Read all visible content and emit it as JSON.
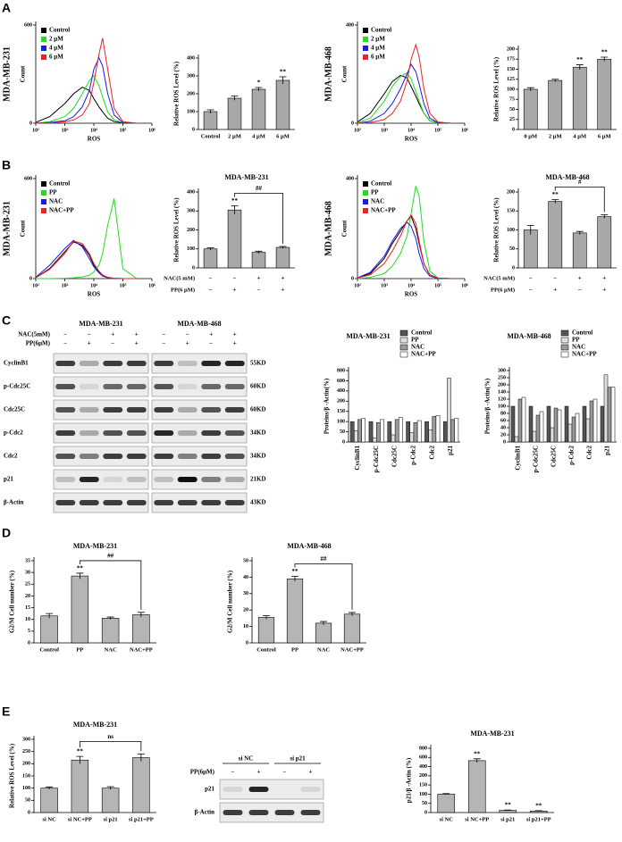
{
  "panels": [
    "A",
    "B",
    "C",
    "D",
    "E"
  ],
  "chart_data": [
    {
      "type": "line",
      "side_label": "MDA-MB-231",
      "xlabel": "ROS",
      "ylabel": "Count",
      "xscale": "log",
      "xlim": [
        100,
        1000000
      ],
      "xticks": [
        {
          "value": 100,
          "label": "10²"
        },
        {
          "value": 1000,
          "label": "10³"
        },
        {
          "value": 10000,
          "label": "10⁴"
        },
        {
          "value": 100000,
          "label": "10⁵"
        },
        {
          "value": 1000000,
          "label": "10⁶"
        }
      ],
      "ylim": [
        0,
        600
      ],
      "yticks": [
        0,
        600
      ],
      "x": [
        100,
        300,
        1000,
        2000,
        4000,
        7000,
        10000,
        15000,
        20000,
        30000,
        50000,
        100000,
        300000
      ],
      "series": [
        {
          "name": "Control",
          "color": "#000000",
          "values": [
            5,
            40,
            120,
            180,
            220,
            200,
            150,
            100,
            70,
            30,
            10,
            2,
            0
          ]
        },
        {
          "name": "2 μM",
          "color": "#22dd22",
          "values": [
            0,
            10,
            40,
            90,
            180,
            260,
            290,
            230,
            160,
            70,
            20,
            3,
            0
          ]
        },
        {
          "name": "4 μM",
          "color": "#1a1aee",
          "values": [
            0,
            5,
            15,
            40,
            100,
            200,
            330,
            400,
            350,
            180,
            50,
            5,
            0
          ]
        },
        {
          "name": "6 μM",
          "color": "#ee2222",
          "values": [
            0,
            2,
            8,
            20,
            50,
            120,
            250,
            420,
            520,
            330,
            90,
            10,
            0
          ]
        }
      ]
    },
    {
      "type": "bar",
      "ylabel": "Relative ROS Level (%)",
      "categories": [
        "Control",
        "2 μM",
        "4 μM",
        "6 μM"
      ],
      "values": [
        100,
        175,
        225,
        275
      ],
      "errors": [
        10,
        12,
        10,
        20
      ],
      "significance": [
        null,
        null,
        "*",
        "**"
      ],
      "color": "#a8a8a8",
      "ylim": [
        0,
        400
      ],
      "yticks": [
        0,
        100,
        200,
        300,
        400
      ]
    },
    {
      "type": "line",
      "side_label": "MDA-MB-468",
      "xlabel": "ROS",
      "ylabel": "Count",
      "xscale": "log",
      "xlim": [
        100,
        1000000
      ],
      "xticks": [
        {
          "value": 100,
          "label": "10²"
        },
        {
          "value": 1000,
          "label": "10³"
        },
        {
          "value": 10000,
          "label": "10⁴"
        },
        {
          "value": 100000,
          "label": "10⁵"
        },
        {
          "value": 1000000,
          "label": "10⁶"
        }
      ],
      "ylim": [
        0,
        400
      ],
      "yticks": [
        0,
        400
      ],
      "x": [
        100,
        300,
        1000,
        2000,
        4000,
        7000,
        10000,
        15000,
        20000,
        30000,
        50000,
        100000,
        300000
      ],
      "series": [
        {
          "name": "Control",
          "color": "#000000",
          "values": [
            5,
            40,
            120,
            170,
            195,
            185,
            150,
            110,
            80,
            40,
            10,
            2,
            0
          ]
        },
        {
          "name": "2 μM",
          "color": "#22dd22",
          "values": [
            2,
            20,
            90,
            150,
            190,
            205,
            180,
            130,
            90,
            40,
            10,
            2,
            0
          ]
        },
        {
          "name": "4 μM",
          "color": "#1a1aee",
          "values": [
            0,
            8,
            40,
            80,
            140,
            200,
            240,
            210,
            160,
            80,
            20,
            3,
            0
          ]
        },
        {
          "name": "6 μM",
          "color": "#ee2222",
          "values": [
            0,
            3,
            15,
            40,
            90,
            170,
            260,
            320,
            270,
            140,
            40,
            5,
            0
          ]
        }
      ]
    },
    {
      "type": "bar",
      "ylabel": "Relative ROS Level (%)",
      "categories": [
        "0 μM",
        "2 μM",
        "4 μM",
        "6 μM"
      ],
      "values": [
        100,
        122,
        155,
        175
      ],
      "errors": [
        4,
        3,
        6,
        5
      ],
      "significance": [
        null,
        null,
        "**",
        "**"
      ],
      "color": "#a8a8a8",
      "ylim": [
        0,
        200
      ],
      "yticks": [
        0,
        25,
        50,
        75,
        100,
        125,
        150,
        175,
        200
      ]
    },
    {
      "type": "line",
      "side_label": "MDA-MB-231",
      "xlabel": "ROS",
      "ylabel": "Count",
      "xscale": "log",
      "xlim": [
        100,
        1000000
      ],
      "xticks": [
        {
          "value": 100,
          "label": "10²"
        },
        {
          "value": 1000,
          "label": "10³"
        },
        {
          "value": 10000,
          "label": "10⁴"
        },
        {
          "value": 100000,
          "label": "10⁵"
        },
        {
          "value": 1000000,
          "label": "10⁶"
        }
      ],
      "ylim": [
        0,
        600
      ],
      "yticks": [
        0,
        600
      ],
      "x": [
        100,
        300,
        1000,
        2000,
        4000,
        7000,
        10000,
        15000,
        20000,
        30000,
        50000,
        100000,
        300000
      ],
      "series": [
        {
          "name": "Control",
          "color": "#000000",
          "values": [
            5,
            60,
            160,
            220,
            200,
            140,
            80,
            40,
            20,
            6,
            1,
            0,
            0
          ]
        },
        {
          "name": "PP",
          "color": "#22dd22",
          "values": [
            0,
            0,
            2,
            5,
            10,
            20,
            40,
            80,
            150,
            320,
            480,
            60,
            0
          ]
        },
        {
          "name": "NAC",
          "color": "#1a1aee",
          "values": [
            8,
            80,
            180,
            230,
            190,
            120,
            70,
            35,
            15,
            5,
            1,
            0,
            0
          ]
        },
        {
          "name": "NAC+PP",
          "color": "#ee2222",
          "values": [
            5,
            55,
            150,
            225,
            210,
            150,
            90,
            45,
            22,
            8,
            2,
            0,
            0
          ]
        }
      ]
    },
    {
      "type": "bar",
      "title": "MDA-MB-231",
      "ylabel": "Relative ROS Level (%)",
      "values": [
        100,
        305,
        82,
        108
      ],
      "errors": [
        6,
        22,
        6,
        5
      ],
      "significance": [
        null,
        "**",
        null,
        null
      ],
      "bracket": "##",
      "conditions": [
        {
          "name": "NAC(5 mM)",
          "signs": [
            "−",
            "−",
            "+",
            "+"
          ]
        },
        {
          "name": "PP(6 μM)",
          "signs": [
            "−",
            "+",
            "−",
            "+"
          ]
        }
      ],
      "color": "#a8a8a8",
      "ylim": [
        0,
        400
      ],
      "yticks": [
        0,
        100,
        200,
        300,
        400
      ]
    },
    {
      "type": "line",
      "side_label": "MDA-MB-468",
      "xlabel": "ROS",
      "ylabel": "Count",
      "xscale": "log",
      "xlim": [
        100,
        1000000
      ],
      "xticks": [
        {
          "value": 100,
          "label": "10²"
        },
        {
          "value": 1000,
          "label": "10³"
        },
        {
          "value": 10000,
          "label": "10⁴"
        },
        {
          "value": 100000,
          "label": "10⁵"
        },
        {
          "value": 1000000,
          "label": "10⁶"
        }
      ],
      "ylim": [
        0,
        400
      ],
      "yticks": [
        0,
        400
      ],
      "x": [
        100,
        300,
        1000,
        2000,
        4000,
        7000,
        10000,
        15000,
        20000,
        30000,
        50000,
        100000,
        300000
      ],
      "series": [
        {
          "name": "Control",
          "color": "#000000",
          "values": [
            3,
            20,
            80,
            140,
            190,
            230,
            250,
            200,
            140,
            60,
            15,
            2,
            0
          ]
        },
        {
          "name": "PP",
          "color": "#22dd22",
          "values": [
            0,
            5,
            20,
            50,
            100,
            170,
            260,
            370,
            330,
            150,
            30,
            3,
            0
          ]
        },
        {
          "name": "NAC",
          "color": "#1a1aee",
          "values": [
            3,
            25,
            90,
            150,
            200,
            225,
            210,
            160,
            100,
            40,
            10,
            1,
            0
          ]
        },
        {
          "name": "NAC+PP",
          "color": "#ee2222",
          "values": [
            2,
            15,
            60,
            110,
            170,
            230,
            255,
            220,
            150,
            60,
            15,
            2,
            0
          ]
        }
      ]
    },
    {
      "type": "bar",
      "title": "MDA-MB-468",
      "ylabel": "Relative ROS Level (%)",
      "values": [
        100,
        175,
        92,
        135
      ],
      "errors": [
        12,
        5,
        4,
        5
      ],
      "significance": [
        null,
        "**",
        null,
        null
      ],
      "bracket": "#",
      "conditions": [
        {
          "name": "NAC(5 mM)",
          "signs": [
            "−",
            "−",
            "+",
            "+"
          ]
        },
        {
          "name": "PP(6 μM)",
          "signs": [
            "−",
            "+",
            "−",
            "+"
          ]
        }
      ],
      "color": "#a8a8a8",
      "ylim": [
        0,
        200
      ],
      "yticks": [
        0,
        50,
        100,
        150,
        200
      ]
    },
    {
      "type": "grouped_bar",
      "title": "MDA-MB-231",
      "ylabel": "Proteins/β -Actin(%)",
      "categories": [
        "CyclinB1",
        "p-Cdc25C",
        "Cdc25C",
        "p-Cdc2",
        "Cdc2",
        "p21"
      ],
      "series": [
        {
          "name": "Control",
          "color": "#555555",
          "values": [
            100,
            100,
            100,
            100,
            100,
            100
          ]
        },
        {
          "name": "PP",
          "color": "#dddddd",
          "values": [
            55,
            20,
            35,
            45,
            60,
            650
          ]
        },
        {
          "name": "NAC",
          "color": "#999999",
          "values": [
            110,
            95,
            110,
            95,
            125,
            110
          ]
        },
        {
          "name": "NAC+PP",
          "color": "#ffffff",
          "values": [
            115,
            110,
            120,
            105,
            130,
            115
          ]
        }
      ],
      "ylim": [
        0,
        800
      ],
      "yticks": [
        0,
        50,
        100,
        150,
        200,
        400,
        600,
        800
      ]
    },
    {
      "type": "grouped_bar",
      "title": "MDA-MB-468",
      "ylabel": "Proteins/β -Actin(%)",
      "categories": [
        "CyclinB1",
        "p-Cdc25C",
        "Cdc25C",
        "p-Cdc2",
        "Cdc2",
        "p21"
      ],
      "series": [
        {
          "name": "Control",
          "color": "#555555",
          "values": [
            100,
            100,
            100,
            100,
            100,
            100
          ]
        },
        {
          "name": "PP",
          "color": "#dddddd",
          "values": [
            15,
            30,
            40,
            50,
            65,
            270
          ]
        },
        {
          "name": "NAC",
          "color": "#999999",
          "values": [
            120,
            75,
            95,
            70,
            115,
            180
          ]
        },
        {
          "name": "NAC+PP",
          "color": "#ffffff",
          "values": [
            125,
            85,
            90,
            80,
            120,
            180
          ]
        }
      ],
      "ylim": [
        0,
        300
      ],
      "yticks": [
        0,
        20,
        40,
        60,
        80,
        100,
        120,
        140,
        200,
        250,
        300
      ]
    },
    {
      "type": "bar",
      "title": "MDA-MB-231",
      "ylabel": "G2/M Cell number (%)",
      "categories": [
        "Control",
        "PP",
        "NAC",
        "NAC+PP"
      ],
      "values": [
        11.5,
        28.5,
        10.5,
        12
      ],
      "errors": [
        1,
        1.2,
        0.5,
        1
      ],
      "significance": [
        null,
        "**",
        null,
        null
      ],
      "bracket": "##",
      "color": "#b5b5b5",
      "ylim": [
        0,
        35
      ],
      "yticks": [
        0,
        5,
        10,
        15,
        20,
        25,
        30,
        35
      ]
    },
    {
      "type": "bar",
      "title": "MDA-MB-468",
      "ylabel": "G2/M Cell number (%)",
      "categories": [
        "Control",
        "PP",
        "NAC",
        "NAC+PP"
      ],
      "values": [
        15.5,
        39,
        12,
        17.5
      ],
      "errors": [
        1,
        1.5,
        1,
        1
      ],
      "significance": [
        null,
        "**",
        null,
        null
      ],
      "bracket": "##",
      "color": "#b5b5b5",
      "ylim": [
        0,
        50
      ],
      "yticks": [
        0,
        10,
        20,
        30,
        40,
        50
      ]
    },
    {
      "type": "bar",
      "title": "MDA-MB-231",
      "ylabel": "Relative ROS Level (%)",
      "categories": [
        "si NC",
        "si NC+PP",
        "si p21",
        "si p21+PP"
      ],
      "values": [
        100,
        215,
        100,
        225
      ],
      "errors": [
        5,
        15,
        6,
        15
      ],
      "significance": [
        null,
        "**",
        null,
        null
      ],
      "bracket": "ns",
      "color": "#b5b5b5",
      "ylim": [
        0,
        300
      ],
      "yticks": [
        0,
        50,
        100,
        150,
        200,
        250,
        300
      ]
    },
    {
      "type": "bar",
      "title": "MDA-MB-231",
      "ylabel": "p21/β -Actin (%)",
      "categories": [
        "si NC",
        "si NC+PP",
        "si p21",
        "si p21+PP"
      ],
      "values": [
        100,
        530,
        12,
        8
      ],
      "errors": [
        3,
        40,
        2,
        2
      ],
      "significance": [
        null,
        "**",
        "**",
        "**"
      ],
      "color": "#b5b5b5",
      "ylim": [
        0,
        800
      ],
      "yticks": [
        0,
        50,
        100,
        150,
        200,
        400,
        600,
        800
      ]
    }
  ],
  "blot_c": {
    "cell_lines": [
      "MDA-MB-231",
      "MDA-MB-468"
    ],
    "conditions": [
      {
        "name": "NAC(5mM)",
        "signs": [
          "−",
          "−",
          "+",
          "+",
          "−",
          "−",
          "+",
          "+"
        ]
      },
      {
        "name": "PP(6μM)",
        "signs": [
          "−",
          "+",
          "−",
          "+",
          "−",
          "+",
          "−",
          "+"
        ]
      }
    ],
    "rows": [
      {
        "protein": "CyclinB1",
        "size": "55KD"
      },
      {
        "protein": "p-Cdc25C",
        "size": "60KD"
      },
      {
        "protein": "Cdc25C",
        "size": "60KD"
      },
      {
        "protein": "p-Cdc2",
        "size": "34KD"
      },
      {
        "protein": "Cdc2",
        "size": "34KD"
      },
      {
        "protein": "p21",
        "size": "21KD"
      },
      {
        "protein": "β-Actin",
        "size": "43KD"
      }
    ]
  },
  "blot_e": {
    "groups": [
      "si NC",
      "si p21"
    ],
    "condition": {
      "name": "PP(6μM)",
      "signs": [
        "−",
        "+",
        "−",
        "+"
      ]
    },
    "rows": [
      "p21",
      "β-Actin"
    ]
  }
}
